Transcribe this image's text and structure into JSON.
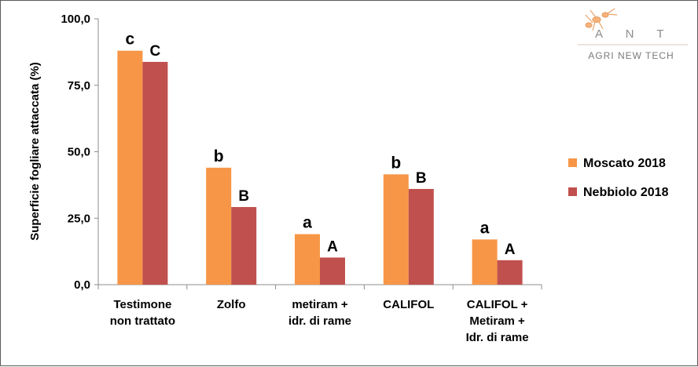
{
  "chart_data": {
    "type": "bar",
    "title": "",
    "ylabel": "Superficie fogliare attaccata (%)",
    "xlabel": "",
    "ylim": [
      0,
      100
    ],
    "yticks": [
      "0,0",
      "25,0",
      "50,0",
      "75,0",
      "100,0"
    ],
    "categories": [
      [
        "Testimone",
        "non trattato"
      ],
      [
        "Zolfo"
      ],
      [
        "metiram +",
        "idr. di rame"
      ],
      [
        "CALIFOL"
      ],
      [
        "CALIFOL +",
        "Metiram +",
        "Idr. di rame"
      ]
    ],
    "series": [
      {
        "name": "Moscato 2018",
        "color": "#f79646",
        "values": [
          88.0,
          44.0,
          19.0,
          41.5,
          17.0
        ],
        "labels": [
          "c",
          "b",
          "a",
          "b",
          "a"
        ]
      },
      {
        "name": "Nebbiolo 2018",
        "color": "#c0504d",
        "values": [
          83.8,
          29.2,
          10.2,
          36.0,
          9.2
        ],
        "labels": [
          "C",
          "B",
          "A",
          "B",
          "A"
        ]
      }
    ],
    "legend_position": "right",
    "grid": false
  },
  "logo": {
    "letters": [
      "A",
      "N",
      "T"
    ],
    "tagline": "AGRI NEW TECH",
    "icon": "ant-icon"
  }
}
